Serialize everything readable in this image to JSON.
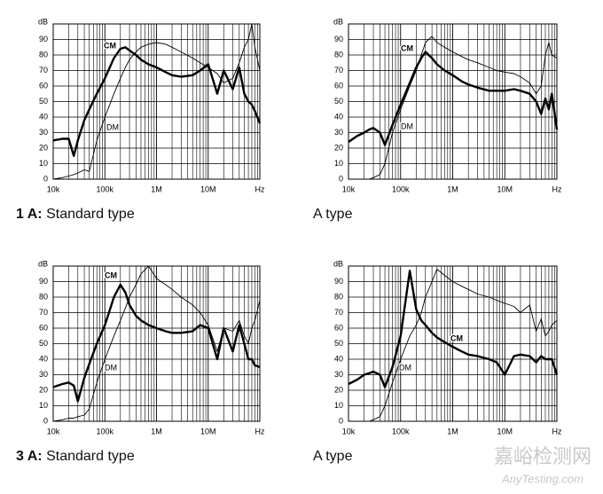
{
  "chart_data": [
    {
      "type": "line",
      "caption_prefix": "1 A:",
      "caption": "Standard type",
      "ylabel": "dB",
      "log_x": true,
      "grid": true,
      "xlim": [
        10000,
        100000000
      ],
      "ylim": [
        0,
        100
      ],
      "xticks": [
        {
          "value": 10000,
          "label": "10k"
        },
        {
          "value": 100000,
          "label": "100k"
        },
        {
          "value": 1000000,
          "label": "1M"
        },
        {
          "value": 10000000,
          "label": "10M"
        },
        {
          "value": 100000000,
          "label": "Hz"
        }
      ],
      "yticks": [
        0,
        10,
        20,
        30,
        40,
        50,
        60,
        70,
        80,
        90
      ],
      "x": [
        10000,
        15000,
        20000,
        25000,
        30000,
        40000,
        50000,
        70000,
        100000,
        150000,
        200000,
        250000,
        300000,
        400000,
        500000,
        700000,
        1000000,
        1500000,
        2000000,
        3000000,
        5000000,
        7000000,
        10000000,
        15000000,
        20000000,
        30000000,
        40000000,
        50000000,
        60000000,
        70000000,
        80000000,
        100000000
      ],
      "series": [
        {
          "name": "CM",
          "color": "#000000",
          "values": [
            25,
            26,
            26,
            15,
            25,
            38,
            45,
            55,
            65,
            78,
            84,
            85,
            83,
            80,
            77,
            74,
            72,
            69,
            67,
            66,
            67,
            70,
            74,
            55,
            70,
            58,
            72,
            55,
            50,
            48,
            44,
            36
          ]
        },
        {
          "name": "DM",
          "color": "#000000",
          "values": [
            0,
            1,
            2,
            3,
            4,
            6,
            5,
            25,
            40,
            55,
            65,
            72,
            77,
            82,
            85,
            87,
            88,
            87,
            85,
            82,
            78,
            75,
            72,
            68,
            62,
            65,
            75,
            85,
            90,
            100,
            85,
            70
          ]
        }
      ]
    },
    {
      "type": "line",
      "caption": "A type",
      "ylabel": "dB",
      "log_x": true,
      "grid": true,
      "xlim": [
        10000,
        100000000
      ],
      "ylim": [
        0,
        100
      ],
      "xticks": [
        {
          "value": 10000,
          "label": "10k"
        },
        {
          "value": 100000,
          "label": "100k"
        },
        {
          "value": 1000000,
          "label": "1M"
        },
        {
          "value": 10000000,
          "label": "10M"
        },
        {
          "value": 100000000,
          "label": "Hz"
        }
      ],
      "yticks": [
        0,
        10,
        20,
        30,
        40,
        50,
        60,
        70,
        80,
        90
      ],
      "x": [
        10000,
        15000,
        20000,
        25000,
        30000,
        40000,
        50000,
        70000,
        100000,
        150000,
        200000,
        250000,
        300000,
        400000,
        500000,
        700000,
        1000000,
        1500000,
        2000000,
        3000000,
        5000000,
        7000000,
        10000000,
        15000000,
        20000000,
        30000000,
        40000000,
        50000000,
        60000000,
        70000000,
        80000000,
        100000000
      ],
      "series": [
        {
          "name": "CM",
          "color": "#000000",
          "values": [
            24,
            28,
            30,
            32,
            33,
            30,
            22,
            35,
            48,
            62,
            72,
            78,
            82,
            78,
            74,
            70,
            67,
            63,
            61,
            59,
            57,
            57,
            57,
            58,
            57,
            55,
            50,
            42,
            52,
            45,
            55,
            32
          ]
        },
        {
          "name": "DM",
          "color": "#000000",
          "values": [
            0,
            0,
            0,
            0,
            1,
            3,
            10,
            30,
            45,
            60,
            70,
            80,
            88,
            92,
            88,
            85,
            82,
            79,
            77,
            75,
            72,
            70,
            69,
            68,
            66,
            62,
            55,
            60,
            80,
            88,
            80,
            78
          ]
        }
      ]
    },
    {
      "type": "line",
      "caption_prefix": "3 A:",
      "caption": "Standard type",
      "ylabel": "dB",
      "log_x": true,
      "grid": true,
      "xlim": [
        10000,
        100000000
      ],
      "ylim": [
        0,
        100
      ],
      "xticks": [
        {
          "value": 10000,
          "label": "10k"
        },
        {
          "value": 100000,
          "label": "100k"
        },
        {
          "value": 1000000,
          "label": "1M"
        },
        {
          "value": 10000000,
          "label": "10M"
        },
        {
          "value": 100000000,
          "label": "Hz"
        }
      ],
      "yticks": [
        0,
        10,
        20,
        30,
        40,
        50,
        60,
        70,
        80,
        90
      ],
      "x": [
        10000,
        15000,
        20000,
        25000,
        30000,
        40000,
        50000,
        70000,
        100000,
        150000,
        200000,
        250000,
        300000,
        400000,
        500000,
        700000,
        1000000,
        1500000,
        2000000,
        3000000,
        5000000,
        7000000,
        10000000,
        15000000,
        20000000,
        30000000,
        40000000,
        50000000,
        60000000,
        70000000,
        80000000,
        100000000
      ],
      "series": [
        {
          "name": "CM",
          "color": "#000000",
          "values": [
            22,
            24,
            25,
            23,
            13,
            28,
            37,
            50,
            62,
            80,
            88,
            83,
            75,
            68,
            65,
            62,
            60,
            58,
            57,
            57,
            58,
            62,
            60,
            40,
            60,
            45,
            62,
            50,
            40,
            40,
            36,
            35
          ]
        },
        {
          "name": "DM",
          "color": "#000000",
          "values": [
            0,
            1,
            2,
            2,
            3,
            4,
            8,
            25,
            40,
            55,
            65,
            73,
            80,
            88,
            95,
            100,
            92,
            88,
            85,
            80,
            75,
            70,
            62,
            45,
            60,
            58,
            65,
            55,
            50,
            60,
            65,
            78
          ]
        }
      ]
    },
    {
      "type": "line",
      "caption": "A type",
      "ylabel": "dB",
      "log_x": true,
      "grid": true,
      "xlim": [
        10000,
        100000000
      ],
      "ylim": [
        0,
        100
      ],
      "xticks": [
        {
          "value": 10000,
          "label": "10k"
        },
        {
          "value": 100000,
          "label": "100k"
        },
        {
          "value": 1000000,
          "label": "1M"
        },
        {
          "value": 10000000,
          "label": "10M"
        },
        {
          "value": 100000000,
          "label": "Hz"
        }
      ],
      "yticks": [
        0,
        10,
        20,
        30,
        40,
        50,
        60,
        70,
        80,
        90
      ],
      "x": [
        10000,
        15000,
        20000,
        25000,
        30000,
        40000,
        50000,
        70000,
        100000,
        150000,
        200000,
        250000,
        300000,
        400000,
        500000,
        700000,
        1000000,
        1500000,
        2000000,
        3000000,
        5000000,
        7000000,
        10000000,
        15000000,
        20000000,
        30000000,
        40000000,
        50000000,
        60000000,
        70000000,
        80000000,
        100000000
      ],
      "series": [
        {
          "name": "CM",
          "color": "#000000",
          "values": [
            24,
            27,
            30,
            31,
            32,
            30,
            22,
            35,
            55,
            97,
            72,
            65,
            62,
            57,
            54,
            51,
            48,
            45,
            43,
            42,
            40,
            38,
            30,
            42,
            43,
            42,
            38,
            42,
            40,
            40,
            40,
            30
          ]
        },
        {
          "name": "DM",
          "color": "#000000",
          "values": [
            0,
            0,
            0,
            0,
            1,
            3,
            10,
            25,
            40,
            55,
            62,
            70,
            80,
            90,
            98,
            94,
            90,
            87,
            85,
            82,
            80,
            78,
            76,
            74,
            70,
            75,
            58,
            66,
            55,
            58,
            62,
            65
          ]
        }
      ]
    }
  ],
  "watermark": {
    "cn": "嘉峪检测网",
    "en": "AnyTesting.com"
  }
}
